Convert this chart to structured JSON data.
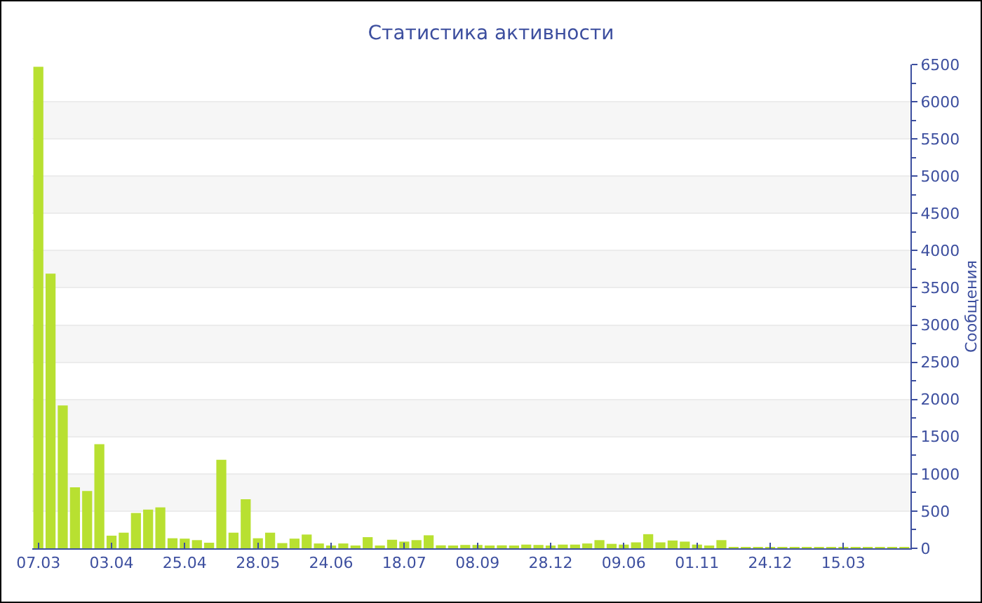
{
  "chart_data": {
    "type": "bar",
    "title": "Статистика активности",
    "ylabel": "Сообщения",
    "categories": [
      "07.03",
      null,
      null,
      null,
      null,
      null,
      "03.04",
      null,
      null,
      null,
      null,
      null,
      "25.04",
      null,
      null,
      null,
      null,
      null,
      "28.05",
      null,
      null,
      null,
      null,
      null,
      "24.06",
      null,
      null,
      null,
      null,
      null,
      "18.07",
      null,
      null,
      null,
      null,
      null,
      "08.09",
      null,
      null,
      null,
      null,
      null,
      "28.12",
      null,
      null,
      null,
      null,
      null,
      "09.06",
      null,
      null,
      null,
      null,
      null,
      "01.11",
      null,
      null,
      null,
      null,
      null,
      "24.12",
      null,
      null,
      null,
      null,
      null,
      "15.03",
      null,
      null,
      null,
      null,
      null
    ],
    "values": [
      6470,
      3690,
      1920,
      820,
      770,
      1400,
      170,
      210,
      475,
      520,
      550,
      135,
      130,
      110,
      75,
      1190,
      210,
      660,
      135,
      210,
      70,
      130,
      185,
      65,
      35,
      65,
      35,
      150,
      30,
      115,
      90,
      110,
      175,
      40,
      20,
      45,
      45,
      20,
      40,
      25,
      50,
      45,
      35,
      50,
      50,
      65,
      110,
      60,
      50,
      80,
      190,
      80,
      105,
      90,
      50,
      25,
      110,
      10,
      10,
      10,
      10,
      10,
      10,
      10,
      10,
      10,
      10,
      10,
      10,
      10,
      10,
      10
    ],
    "color": "#b8e031",
    "ylim": [
      0,
      6500
    ],
    "yticks": [
      0,
      500,
      1000,
      1500,
      2000,
      2500,
      3000,
      3500,
      4000,
      4500,
      5000,
      5500,
      6000,
      6500
    ],
    "grid": "y"
  }
}
